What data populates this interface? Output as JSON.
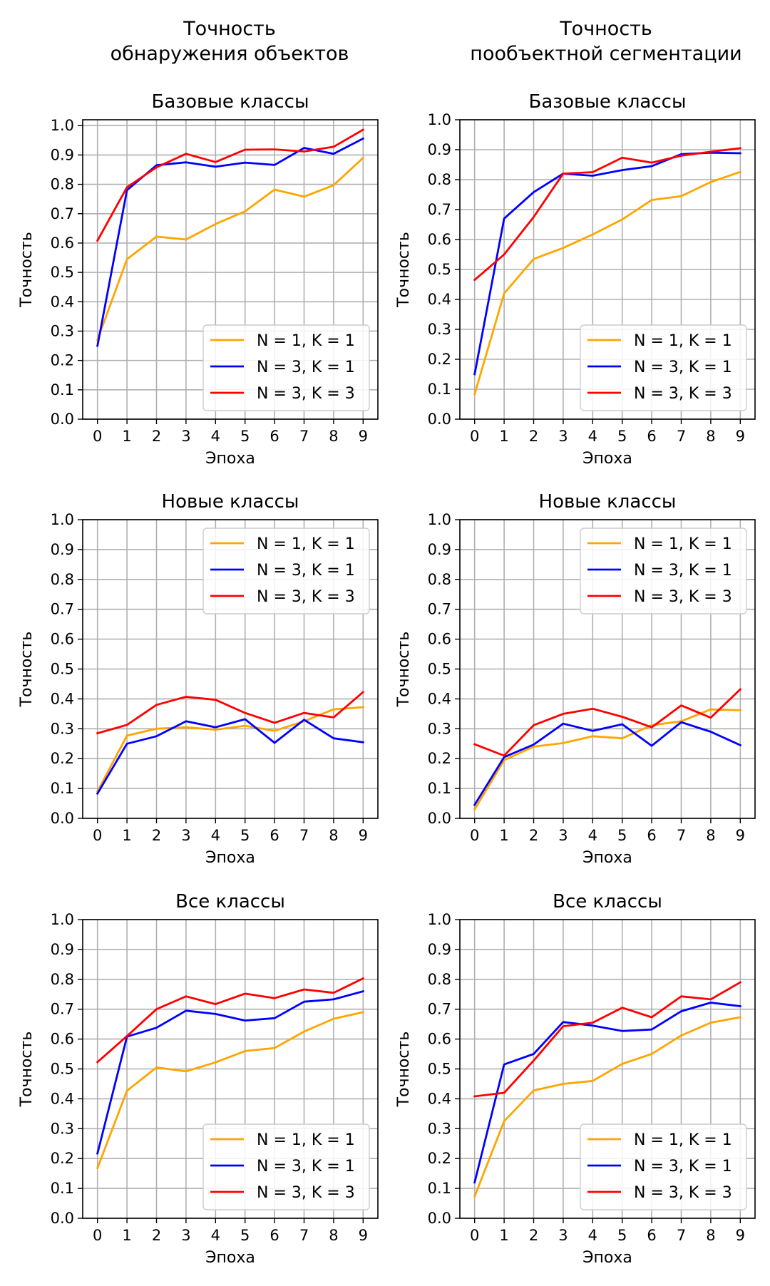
{
  "figure": {
    "column_titles": [
      [
        "Точность",
        "обнаружения объектов"
      ],
      [
        "Точность",
        "пообъектной сегментации"
      ]
    ]
  },
  "colors": {
    "orange": "#FFA500",
    "blue": "#0000FF",
    "red": "#FF0000",
    "grid": "#b0b0b0"
  },
  "chart_data": [
    {
      "type": "line",
      "title": "Базовые классы",
      "xlabel": "Эпоха",
      "ylabel": "Точность",
      "x": [
        0,
        1,
        2,
        3,
        4,
        5,
        6,
        7,
        8,
        9
      ],
      "xlim": [
        -0.5,
        9.5
      ],
      "ylim": [
        0.0,
        1.02
      ],
      "yticks": [
        0.0,
        0.1,
        0.2,
        0.3,
        0.4,
        0.5,
        0.6,
        0.7,
        0.8,
        0.9,
        1.0
      ],
      "grid": true,
      "legend": "lower-right",
      "series": [
        {
          "name": "N = 1, K = 1",
          "color": "#FFA500",
          "values": [
            0.27,
            0.545,
            0.622,
            0.612,
            0.665,
            0.708,
            0.782,
            0.758,
            0.797,
            0.89
          ]
        },
        {
          "name": "N = 3, K = 1",
          "color": "#0000FF",
          "values": [
            0.25,
            0.78,
            0.865,
            0.875,
            0.86,
            0.874,
            0.866,
            0.924,
            0.904,
            0.956
          ]
        },
        {
          "name": "N = 3, K = 3",
          "color": "#FF0000",
          "values": [
            0.608,
            0.79,
            0.858,
            0.904,
            0.876,
            0.918,
            0.919,
            0.912,
            0.928,
            0.986
          ]
        }
      ]
    },
    {
      "type": "line",
      "title": "Базовые классы",
      "xlabel": "Эпоха",
      "ylabel": "Точность",
      "x": [
        0,
        1,
        2,
        3,
        4,
        5,
        6,
        7,
        8,
        9
      ],
      "xlim": [
        -0.5,
        9.5
      ],
      "ylim": [
        0.0,
        1.0
      ],
      "yticks": [
        0.0,
        0.1,
        0.2,
        0.3,
        0.4,
        0.5,
        0.6,
        0.7,
        0.8,
        0.9,
        1.0
      ],
      "grid": true,
      "legend": "lower-right",
      "series": [
        {
          "name": "N = 1, K = 1",
          "color": "#FFA500",
          "values": [
            0.083,
            0.42,
            0.535,
            0.572,
            0.617,
            0.667,
            0.732,
            0.745,
            0.792,
            0.826
          ]
        },
        {
          "name": "N = 3, K = 1",
          "color": "#0000FF",
          "values": [
            0.15,
            0.67,
            0.758,
            0.82,
            0.813,
            0.832,
            0.845,
            0.885,
            0.89,
            0.888
          ]
        },
        {
          "name": "N = 3, K = 3",
          "color": "#FF0000",
          "values": [
            0.465,
            0.55,
            0.675,
            0.82,
            0.825,
            0.873,
            0.857,
            0.88,
            0.893,
            0.905
          ]
        }
      ]
    },
    {
      "type": "line",
      "title": "Новые классы",
      "xlabel": "Эпоха",
      "ylabel": "Точность",
      "x": [
        0,
        1,
        2,
        3,
        4,
        5,
        6,
        7,
        8,
        9
      ],
      "xlim": [
        -0.5,
        9.5
      ],
      "ylim": [
        0.0,
        1.0
      ],
      "yticks": [
        0.0,
        0.1,
        0.2,
        0.3,
        0.4,
        0.5,
        0.6,
        0.7,
        0.8,
        0.9,
        1.0
      ],
      "grid": true,
      "legend": "top-right",
      "series": [
        {
          "name": "N = 1, K = 1",
          "color": "#FFA500",
          "values": [
            0.09,
            0.277,
            0.3,
            0.305,
            0.297,
            0.31,
            0.293,
            0.325,
            0.365,
            0.372
          ]
        },
        {
          "name": "N = 3, K = 1",
          "color": "#0000FF",
          "values": [
            0.083,
            0.25,
            0.275,
            0.325,
            0.305,
            0.332,
            0.253,
            0.33,
            0.268,
            0.255
          ]
        },
        {
          "name": "N = 3, K = 3",
          "color": "#FF0000",
          "values": [
            0.285,
            0.313,
            0.38,
            0.407,
            0.397,
            0.353,
            0.32,
            0.353,
            0.338,
            0.423
          ]
        }
      ]
    },
    {
      "type": "line",
      "title": "Новые классы",
      "xlabel": "Эпоха",
      "ylabel": "Точность",
      "x": [
        0,
        1,
        2,
        3,
        4,
        5,
        6,
        7,
        8,
        9
      ],
      "xlim": [
        -0.5,
        9.5
      ],
      "ylim": [
        0.0,
        1.0
      ],
      "yticks": [
        0.0,
        0.1,
        0.2,
        0.3,
        0.4,
        0.5,
        0.6,
        0.7,
        0.8,
        0.9,
        1.0
      ],
      "grid": true,
      "legend": "top-right",
      "series": [
        {
          "name": "N = 1, K = 1",
          "color": "#FFA500",
          "values": [
            0.03,
            0.195,
            0.24,
            0.252,
            0.275,
            0.268,
            0.312,
            0.325,
            0.365,
            0.362
          ]
        },
        {
          "name": "N = 3, K = 1",
          "color": "#0000FF",
          "values": [
            0.045,
            0.205,
            0.247,
            0.317,
            0.293,
            0.315,
            0.243,
            0.322,
            0.29,
            0.245
          ]
        },
        {
          "name": "N = 3, K = 3",
          "color": "#FF0000",
          "values": [
            0.248,
            0.21,
            0.312,
            0.35,
            0.367,
            0.34,
            0.305,
            0.378,
            0.337,
            0.432
          ]
        }
      ]
    },
    {
      "type": "line",
      "title": "Все классы",
      "xlabel": "Эпоха",
      "ylabel": "Точность",
      "x": [
        0,
        1,
        2,
        3,
        4,
        5,
        6,
        7,
        8,
        9
      ],
      "xlim": [
        -0.5,
        9.5
      ],
      "ylim": [
        0.0,
        1.0
      ],
      "yticks": [
        0.0,
        0.1,
        0.2,
        0.3,
        0.4,
        0.5,
        0.6,
        0.7,
        0.8,
        0.9,
        1.0
      ],
      "grid": true,
      "legend": "lower-right",
      "series": [
        {
          "name": "N = 1, K = 1",
          "color": "#FFA500",
          "values": [
            0.168,
            0.427,
            0.505,
            0.492,
            0.522,
            0.56,
            0.57,
            0.625,
            0.668,
            0.69
          ]
        },
        {
          "name": "N = 3, K = 1",
          "color": "#0000FF",
          "values": [
            0.217,
            0.608,
            0.638,
            0.695,
            0.684,
            0.662,
            0.67,
            0.725,
            0.733,
            0.76
          ]
        },
        {
          "name": "N = 3, K = 3",
          "color": "#FF0000",
          "values": [
            0.523,
            0.61,
            0.7,
            0.743,
            0.717,
            0.752,
            0.737,
            0.766,
            0.755,
            0.803
          ]
        }
      ]
    },
    {
      "type": "line",
      "title": "Все классы",
      "xlabel": "Эпоха",
      "ylabel": "Точность",
      "x": [
        0,
        1,
        2,
        3,
        4,
        5,
        6,
        7,
        8,
        9
      ],
      "xlim": [
        -0.5,
        9.5
      ],
      "ylim": [
        0.0,
        1.0
      ],
      "yticks": [
        0.0,
        0.1,
        0.2,
        0.3,
        0.4,
        0.5,
        0.6,
        0.7,
        0.8,
        0.9,
        1.0
      ],
      "grid": true,
      "legend": "lower-right",
      "series": [
        {
          "name": "N = 1, K = 1",
          "color": "#FFA500",
          "values": [
            0.073,
            0.325,
            0.428,
            0.45,
            0.46,
            0.517,
            0.55,
            0.612,
            0.655,
            0.673
          ]
        },
        {
          "name": "N = 3, K = 1",
          "color": "#0000FF",
          "values": [
            0.12,
            0.515,
            0.55,
            0.657,
            0.645,
            0.627,
            0.632,
            0.693,
            0.722,
            0.71
          ]
        },
        {
          "name": "N = 3, K = 3",
          "color": "#FF0000",
          "values": [
            0.408,
            0.42,
            0.528,
            0.643,
            0.655,
            0.705,
            0.673,
            0.743,
            0.733,
            0.79
          ]
        }
      ]
    }
  ]
}
